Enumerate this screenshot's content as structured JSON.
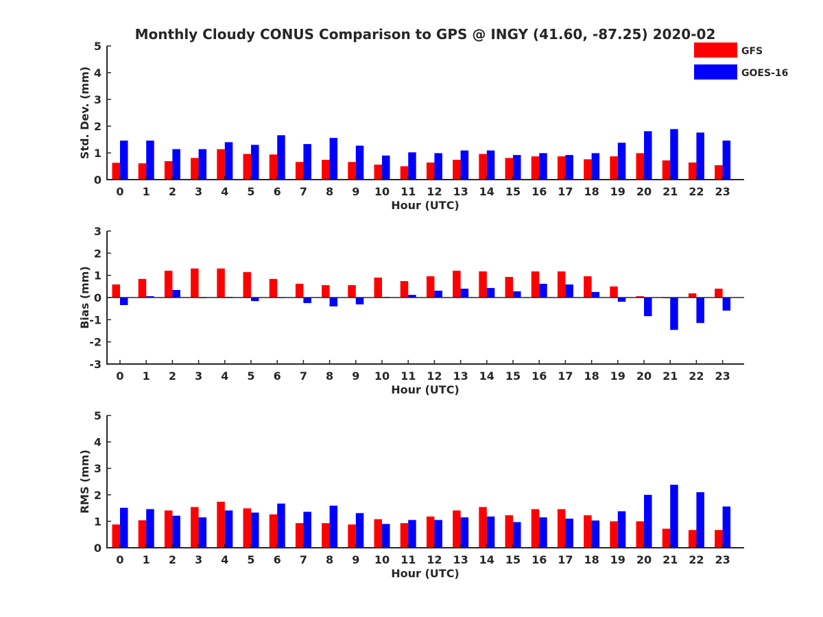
{
  "chart_data": {
    "title": "Monthly Cloudy CONUS Comparison to GPS @ INGY (41.60, -87.25) 2020-02",
    "type": "bar",
    "legend": {
      "position": "top-right",
      "entries": [
        {
          "name": "GFS",
          "color": "#ff0000"
        },
        {
          "name": "GOES-16",
          "color": "#0000ff"
        }
      ]
    },
    "panels": [
      {
        "type": "bar",
        "xlabel": "Hour (UTC)",
        "ylabel": "Std. Dev. (mm)",
        "ylim": [
          0,
          5
        ],
        "yticks": [
          "0",
          "1",
          "2",
          "3",
          "4",
          "5"
        ],
        "categories": [
          "0",
          "1",
          "2",
          "3",
          "4",
          "5",
          "6",
          "7",
          "8",
          "9",
          "10",
          "11",
          "12",
          "13",
          "14",
          "15",
          "16",
          "17",
          "18",
          "19",
          "20",
          "21",
          "22",
          "23"
        ],
        "series": [
          {
            "name": "GFS",
            "color": "#ff0000",
            "values": [
              0.63,
              0.61,
              0.69,
              0.81,
              1.14,
              0.96,
              0.94,
              0.66,
              0.74,
              0.66,
              0.56,
              0.5,
              0.64,
              0.74,
              0.96,
              0.81,
              0.87,
              0.87,
              0.76,
              0.87,
              0.99,
              0.72,
              0.64,
              0.54
            ]
          },
          {
            "name": "GOES-16",
            "color": "#0000ff",
            "values": [
              1.46,
              1.46,
              1.14,
              1.14,
              1.4,
              1.3,
              1.66,
              1.33,
              1.56,
              1.27,
              0.9,
              1.02,
              0.99,
              1.09,
              1.09,
              0.92,
              0.99,
              0.92,
              0.99,
              1.38,
              1.81,
              1.89,
              1.76,
              1.46
            ]
          }
        ]
      },
      {
        "type": "bar",
        "xlabel": "Hour (UTC)",
        "ylabel": "Bias (mm)",
        "ylim": [
          -3,
          3
        ],
        "yticks": [
          "-3",
          "-2",
          "-1",
          "0",
          "1",
          "2",
          "3"
        ],
        "categories": [
          "0",
          "1",
          "2",
          "3",
          "4",
          "5",
          "6",
          "7",
          "8",
          "9",
          "10",
          "11",
          "12",
          "13",
          "14",
          "15",
          "16",
          "17",
          "18",
          "19",
          "20",
          "21",
          "22",
          "23"
        ],
        "series": [
          {
            "name": "GFS",
            "color": "#ff0000",
            "values": [
              0.59,
              0.84,
              1.21,
              1.31,
              1.31,
              1.15,
              0.84,
              0.62,
              0.56,
              0.56,
              0.9,
              0.74,
              0.96,
              1.21,
              1.18,
              0.93,
              1.18,
              1.18,
              0.96,
              0.5,
              0.06,
              -0.03,
              0.19,
              0.4
            ]
          },
          {
            "name": "GOES-16",
            "color": "#0000ff",
            "values": [
              -0.34,
              0.06,
              0.34,
              -0.03,
              0.03,
              -0.16,
              0.0,
              -0.25,
              -0.4,
              -0.31,
              0.03,
              0.12,
              0.31,
              0.4,
              0.43,
              0.28,
              0.62,
              0.59,
              0.25,
              -0.19,
              -0.84,
              -1.46,
              -1.15,
              -0.59
            ]
          }
        ]
      },
      {
        "type": "bar",
        "xlabel": "Hour (UTC)",
        "ylabel": "RMS (mm)",
        "ylim": [
          0,
          5
        ],
        "yticks": [
          "0",
          "1",
          "2",
          "3",
          "4",
          "5"
        ],
        "categories": [
          "0",
          "1",
          "2",
          "3",
          "4",
          "5",
          "6",
          "7",
          "8",
          "9",
          "10",
          "11",
          "12",
          "13",
          "14",
          "15",
          "16",
          "17",
          "18",
          "19",
          "20",
          "21",
          "22",
          "23"
        ],
        "series": [
          {
            "name": "GFS",
            "color": "#ff0000",
            "values": [
              0.88,
              1.04,
              1.41,
              1.54,
              1.74,
              1.49,
              1.26,
              0.93,
              0.93,
              0.88,
              1.08,
              0.93,
              1.18,
              1.41,
              1.54,
              1.23,
              1.46,
              1.46,
              1.23,
              1.0,
              1.0,
              0.72,
              0.67,
              0.67
            ]
          },
          {
            "name": "GOES-16",
            "color": "#0000ff",
            "values": [
              1.51,
              1.46,
              1.21,
              1.15,
              1.41,
              1.33,
              1.67,
              1.36,
              1.59,
              1.31,
              0.9,
              1.05,
              1.05,
              1.15,
              1.18,
              0.97,
              1.15,
              1.1,
              1.03,
              1.38,
              2.0,
              2.38,
              2.1,
              1.56
            ]
          }
        ]
      }
    ]
  }
}
